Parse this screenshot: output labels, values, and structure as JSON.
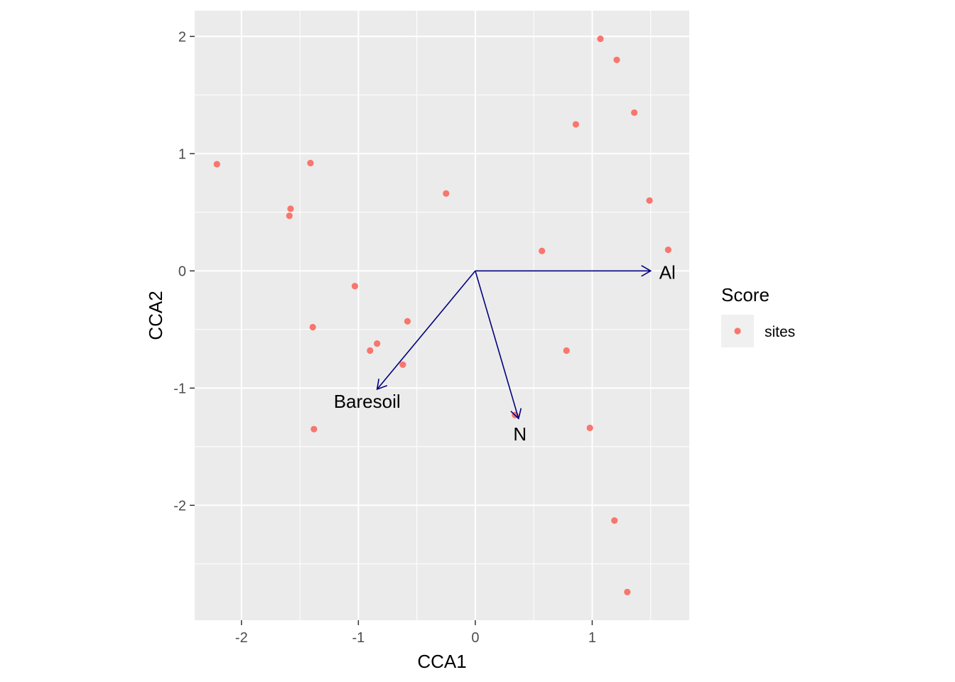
{
  "chart_data": {
    "type": "scatter",
    "title": "",
    "xlabel": "CCA1",
    "ylabel": "CCA2",
    "xlim": [
      -2.4,
      1.83
    ],
    "ylim": [
      -2.98,
      2.22
    ],
    "x_ticks": [
      -2,
      -1,
      0,
      1
    ],
    "y_ticks": [
      -2,
      -1,
      0,
      1,
      2
    ],
    "grid": true,
    "series": [
      {
        "name": "sites",
        "color": "#f8766d",
        "points": [
          {
            "x": 1.07,
            "y": 1.98
          },
          {
            "x": 1.21,
            "y": 1.8
          },
          {
            "x": 1.36,
            "y": 1.35
          },
          {
            "x": 0.86,
            "y": 1.25
          },
          {
            "x": -2.21,
            "y": 0.91
          },
          {
            "x": -1.41,
            "y": 0.92
          },
          {
            "x": -1.58,
            "y": 0.53
          },
          {
            "x": -1.59,
            "y": 0.47
          },
          {
            "x": -0.25,
            "y": 0.66
          },
          {
            "x": 1.49,
            "y": 0.6
          },
          {
            "x": 1.65,
            "y": 0.18
          },
          {
            "x": 0.57,
            "y": 0.17
          },
          {
            "x": -1.03,
            "y": -0.13
          },
          {
            "x": -1.39,
            "y": -0.48
          },
          {
            "x": -0.58,
            "y": -0.43
          },
          {
            "x": -0.84,
            "y": -0.62
          },
          {
            "x": -0.9,
            "y": -0.68
          },
          {
            "x": -0.62,
            "y": -0.8
          },
          {
            "x": 0.78,
            "y": -0.68
          },
          {
            "x": 0.34,
            "y": -1.23
          },
          {
            "x": -1.38,
            "y": -1.35
          },
          {
            "x": 0.98,
            "y": -1.34
          },
          {
            "x": 1.19,
            "y": -2.13
          },
          {
            "x": 1.3,
            "y": -2.74
          }
        ]
      }
    ],
    "vectors": [
      {
        "name": "Al",
        "x": 1.5,
        "y": 0.0,
        "color": "#000080"
      },
      {
        "name": "Baresoil",
        "x": -0.84,
        "y": -1.01,
        "color": "#000080"
      },
      {
        "name": "N",
        "x": 0.37,
        "y": -1.26,
        "color": "#000080"
      }
    ],
    "legend": {
      "title": "Score",
      "position": "right",
      "entries": [
        "sites"
      ]
    }
  }
}
